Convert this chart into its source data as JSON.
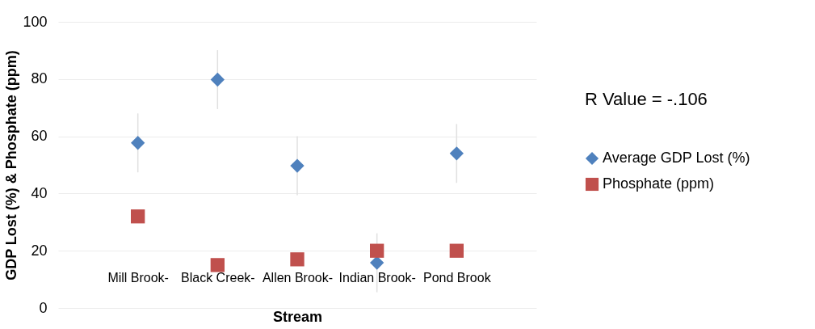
{
  "chart_data": {
    "type": "scatter",
    "xlabel": "Stream",
    "ylabel": "GDP Lost (%) & Phosphate (ppm)",
    "categories": [
      "Mill Brook-",
      "Black Creek-",
      "Allen Brook-",
      "Indian Brook-",
      "Pond Brook"
    ],
    "series": [
      {
        "name": "Average GDP Lost (%)",
        "color": "#4f81bd",
        "marker": "diamond",
        "values": [
          57.7,
          79.8,
          49.7,
          15.8,
          54
        ],
        "errors": [
          10.3,
          10.3,
          10.3,
          10.3,
          10.3
        ]
      },
      {
        "name": "Phosphate (ppm)",
        "color": "#c0504d",
        "marker": "square",
        "values": [
          32,
          15,
          17,
          20,
          20
        ]
      }
    ],
    "ylim": [
      0,
      100
    ],
    "yticks": [
      0,
      20,
      40,
      60,
      80,
      100
    ],
    "grid": "y",
    "legend": "right",
    "annotations": [
      "R Value = -.106"
    ]
  }
}
